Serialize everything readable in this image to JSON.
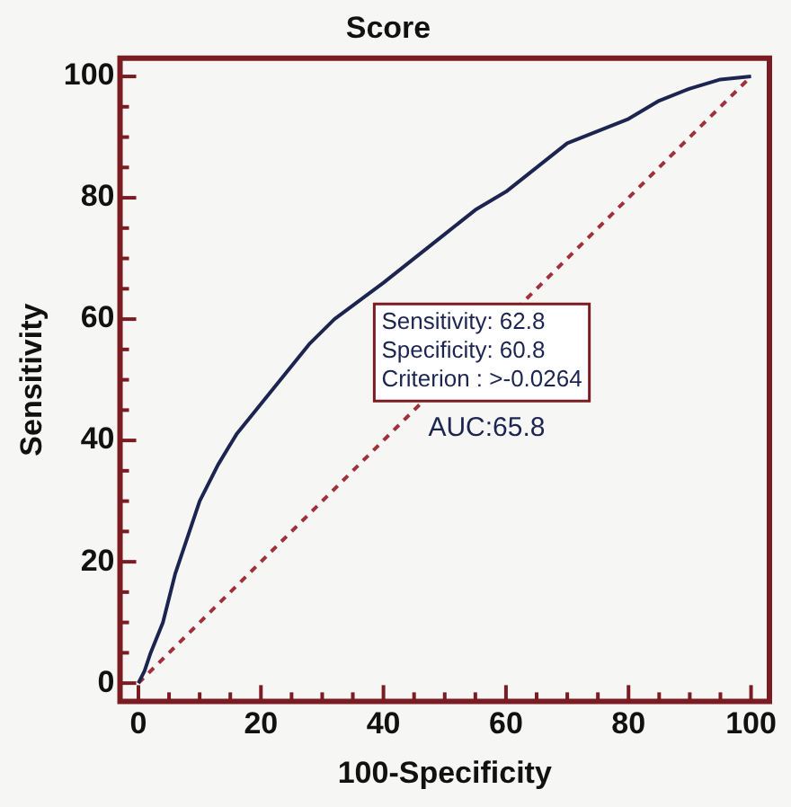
{
  "chart_data": {
    "type": "line",
    "title": "Score",
    "xlabel": "100-Specificity",
    "ylabel": "Sensitivity",
    "xlim": [
      -3,
      103
    ],
    "ylim": [
      -3,
      103
    ],
    "xticks": [
      0,
      {
        "value": 5,
        "label": null
      },
      {
        "value": 10,
        "label": null
      },
      {
        "value": 15,
        "label": null
      },
      20,
      {
        "value": 25,
        "label": null
      },
      {
        "value": 30,
        "label": null
      },
      {
        "value": 35,
        "label": null
      },
      40,
      {
        "value": 45,
        "label": null
      },
      {
        "value": 50,
        "label": null
      },
      {
        "value": 55,
        "label": null
      },
      60,
      {
        "value": 65,
        "label": null
      },
      {
        "value": 70,
        "label": null
      },
      {
        "value": 75,
        "label": null
      },
      80,
      {
        "value": 85,
        "label": null
      },
      {
        "value": 90,
        "label": null
      },
      {
        "value": 95,
        "label": null
      },
      100
    ],
    "yticks": [
      0,
      {
        "value": 5,
        "label": null
      },
      {
        "value": 10,
        "label": null
      },
      {
        "value": 15,
        "label": null
      },
      20,
      {
        "value": 25,
        "label": null
      },
      {
        "value": 30,
        "label": null
      },
      {
        "value": 35,
        "label": null
      },
      40,
      {
        "value": 45,
        "label": null
      },
      {
        "value": 50,
        "label": null
      },
      {
        "value": 55,
        "label": null
      },
      60,
      {
        "value": 65,
        "label": null
      },
      {
        "value": 70,
        "label": null
      },
      {
        "value": 75,
        "label": null
      },
      80,
      {
        "value": 85,
        "label": null
      },
      {
        "value": 90,
        "label": null
      },
      {
        "value": 95,
        "label": null
      },
      100
    ],
    "grid": false,
    "legend": false,
    "marker": "none",
    "series": [
      {
        "color": "#1c2450",
        "line_style": "solid",
        "x": [
          0,
          1,
          2,
          4,
          6,
          8,
          10,
          13,
          16,
          20,
          24,
          28,
          32,
          36,
          40,
          45,
          50,
          55,
          60,
          65,
          70,
          75,
          80,
          85,
          90,
          95,
          100
        ],
        "values": [
          0,
          2,
          5,
          10,
          18,
          24,
          30,
          36,
          41,
          46,
          51,
          56,
          60,
          63,
          66,
          70,
          74,
          78,
          81,
          85,
          89,
          91,
          93,
          96,
          98,
          99.5,
          100
        ]
      },
      {
        "type": "line",
        "color": "#a0303a",
        "line_style": "dashed",
        "x": [
          0,
          100
        ],
        "values": [
          0,
          100
        ]
      }
    ],
    "annotations": [
      "Sensitivity: 62.8",
      "Specificity: 60.8",
      "Criterion : >-0.0264",
      "AUC:65.8"
    ]
  }
}
